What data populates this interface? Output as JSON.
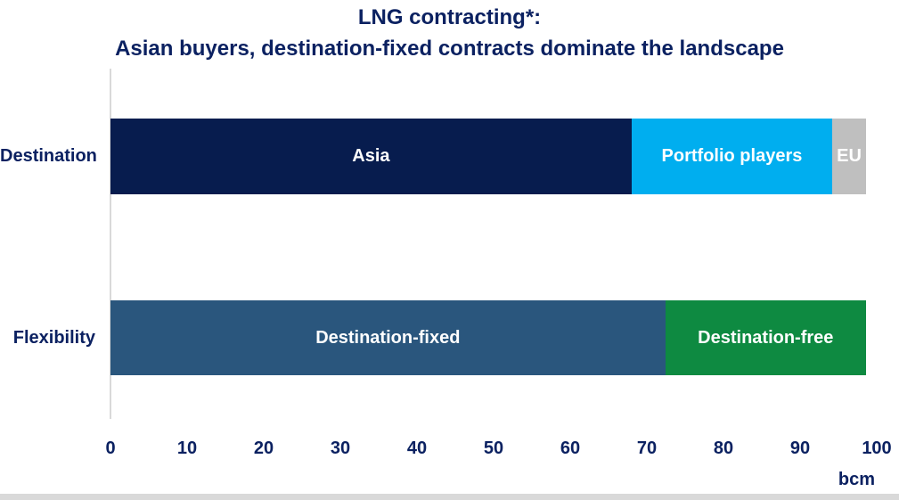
{
  "title": {
    "line1": "LNG contracting*:",
    "line2": "Asian buyers, destination-fixed contracts dominate the landscape"
  },
  "colors": {
    "title_text": "#0B2161",
    "axis_text": "#0B2161",
    "category_text": "#0B2161",
    "segment_label_text": "#FFFFFF",
    "axis_line": "#D9D9D9",
    "bottom_divider": "#D9D9D9"
  },
  "chart_data": {
    "type": "bar",
    "orientation": "horizontal",
    "stacked": true,
    "title": "LNG contracting*: Asian buyers, destination-fixed contracts dominate the landscape",
    "unit": "bcm",
    "axis_label": "bcm",
    "xlim": [
      0,
      100
    ],
    "x_ticks": [
      0,
      10,
      20,
      30,
      40,
      50,
      60,
      70,
      80,
      90,
      100
    ],
    "grid": false,
    "legend": "none",
    "categories": [
      "Destination",
      "Flexibility"
    ],
    "rows": [
      {
        "category": "Destination",
        "segments": [
          {
            "label": "Asia",
            "value": 68,
            "color": "#071C4E"
          },
          {
            "label": "Portfolio players",
            "value": 26.2,
            "color": "#00AEEF"
          },
          {
            "label": "EU",
            "value": 4.4,
            "color": "#BFBFBF"
          }
        ]
      },
      {
        "category": "Flexibility",
        "segments": [
          {
            "label": "Destination-fixed",
            "value": 72.4,
            "color": "#2A567D"
          },
          {
            "label": "Destination-free",
            "value": 26.2,
            "color": "#0E8A41"
          }
        ]
      }
    ]
  }
}
